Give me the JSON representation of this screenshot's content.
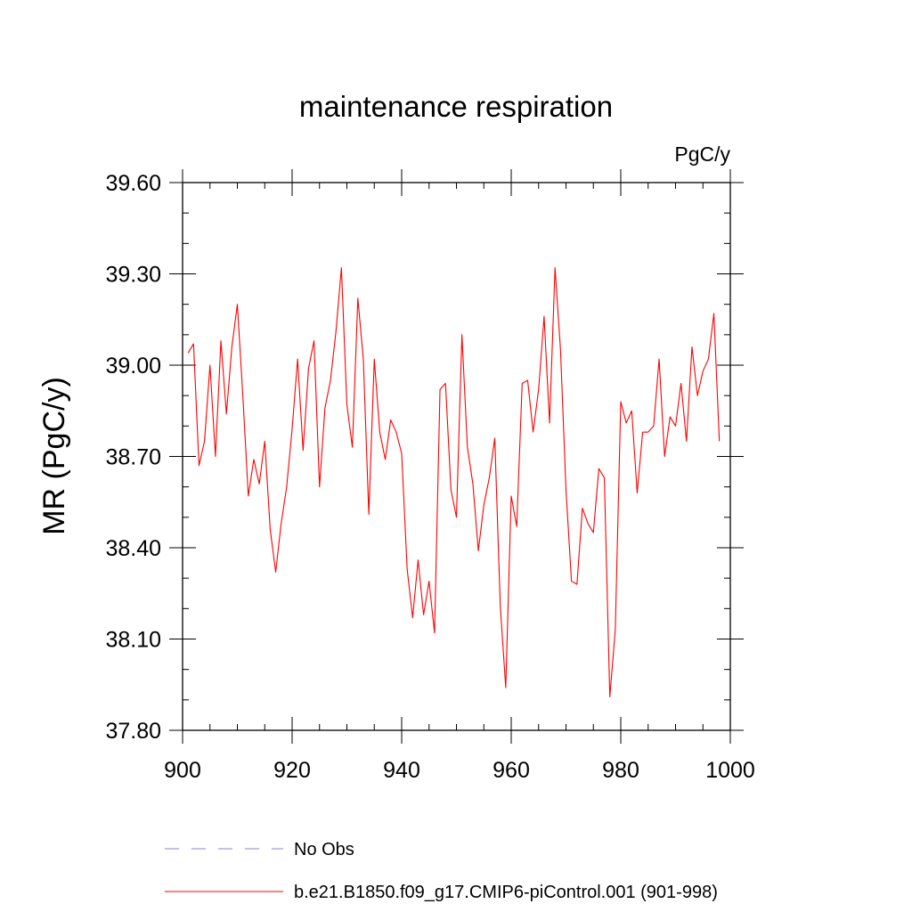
{
  "chart_data": {
    "type": "line",
    "title": "maintenance respiration",
    "units_label": "PgC/y",
    "ylabel": "MR  (PgC/y)",
    "xlabel": "",
    "xlim": [
      900,
      1000
    ],
    "ylim": [
      37.8,
      39.6
    ],
    "x_ticks": [
      "900",
      "920",
      "940",
      "960",
      "980",
      "1000"
    ],
    "y_ticks": [
      "37.80",
      "38.10",
      "38.40",
      "38.70",
      "39.00",
      "39.30",
      "39.60"
    ],
    "grid": false,
    "legend_position": "bottom",
    "series": [
      {
        "name": "b.e21.B1850.f09_g17.CMIP6-piControl.001 (901-998)",
        "color": "#ff0000",
        "style": "solid",
        "x": [
          901,
          902,
          903,
          904,
          905,
          906,
          907,
          908,
          909,
          910,
          911,
          912,
          913,
          914,
          915,
          916,
          917,
          918,
          919,
          920,
          921,
          922,
          923,
          924,
          925,
          926,
          927,
          928,
          929,
          930,
          931,
          932,
          933,
          934,
          935,
          936,
          937,
          938,
          939,
          940,
          941,
          942,
          943,
          944,
          945,
          946,
          947,
          948,
          949,
          950,
          951,
          952,
          953,
          954,
          955,
          956,
          957,
          958,
          959,
          960,
          961,
          962,
          963,
          964,
          965,
          966,
          967,
          968,
          969,
          970,
          971,
          972,
          973,
          974,
          975,
          976,
          977,
          978,
          979,
          980,
          981,
          982,
          983,
          984,
          985,
          986,
          987,
          988,
          989,
          990,
          991,
          992,
          993,
          994,
          995,
          996,
          997,
          998
        ],
        "values": [
          39.04,
          39.07,
          38.67,
          38.75,
          39.0,
          38.7,
          39.08,
          38.84,
          39.06,
          39.2,
          38.9,
          38.57,
          38.69,
          38.61,
          38.75,
          38.46,
          38.32,
          38.48,
          38.6,
          38.79,
          39.02,
          38.72,
          38.99,
          39.08,
          38.6,
          38.86,
          38.95,
          39.11,
          39.32,
          38.87,
          38.73,
          39.22,
          39.02,
          38.51,
          39.02,
          38.78,
          38.69,
          38.82,
          38.78,
          38.71,
          38.33,
          38.17,
          38.36,
          38.18,
          38.29,
          38.12,
          38.92,
          38.94,
          38.59,
          38.5,
          39.1,
          38.73,
          38.61,
          38.39,
          38.54,
          38.63,
          38.76,
          38.21,
          37.94,
          38.57,
          38.47,
          38.94,
          38.95,
          38.78,
          38.92,
          39.16,
          38.81,
          39.32,
          39.05,
          38.59,
          38.29,
          38.28,
          38.53,
          38.48,
          38.45,
          38.66,
          38.63,
          37.91,
          38.13,
          38.88,
          38.81,
          38.85,
          38.58,
          38.78,
          38.78,
          38.8,
          39.02,
          38.7,
          38.83,
          38.8,
          38.94,
          38.75,
          39.06,
          38.9,
          38.98,
          39.02,
          39.17,
          38.75
        ]
      },
      {
        "name": "No Obs",
        "color": "#8585cc",
        "style": "dashed",
        "x": [],
        "values": []
      }
    ]
  }
}
